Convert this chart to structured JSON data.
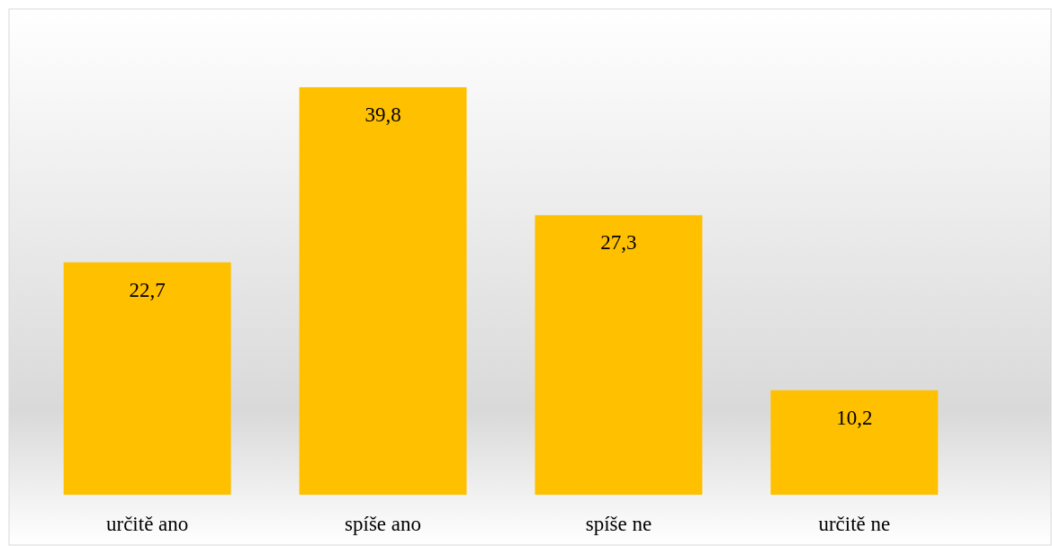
{
  "chart_data": {
    "type": "bar",
    "categories": [
      "určitě ano",
      "spíše ano",
      "spíše ne",
      "určitě ne"
    ],
    "values": [
      22.7,
      39.8,
      27.3,
      10.2
    ],
    "value_labels": [
      "22,7",
      "39,8",
      "27,3",
      "10,2"
    ],
    "color": "#ffc000",
    "grid": false
  }
}
